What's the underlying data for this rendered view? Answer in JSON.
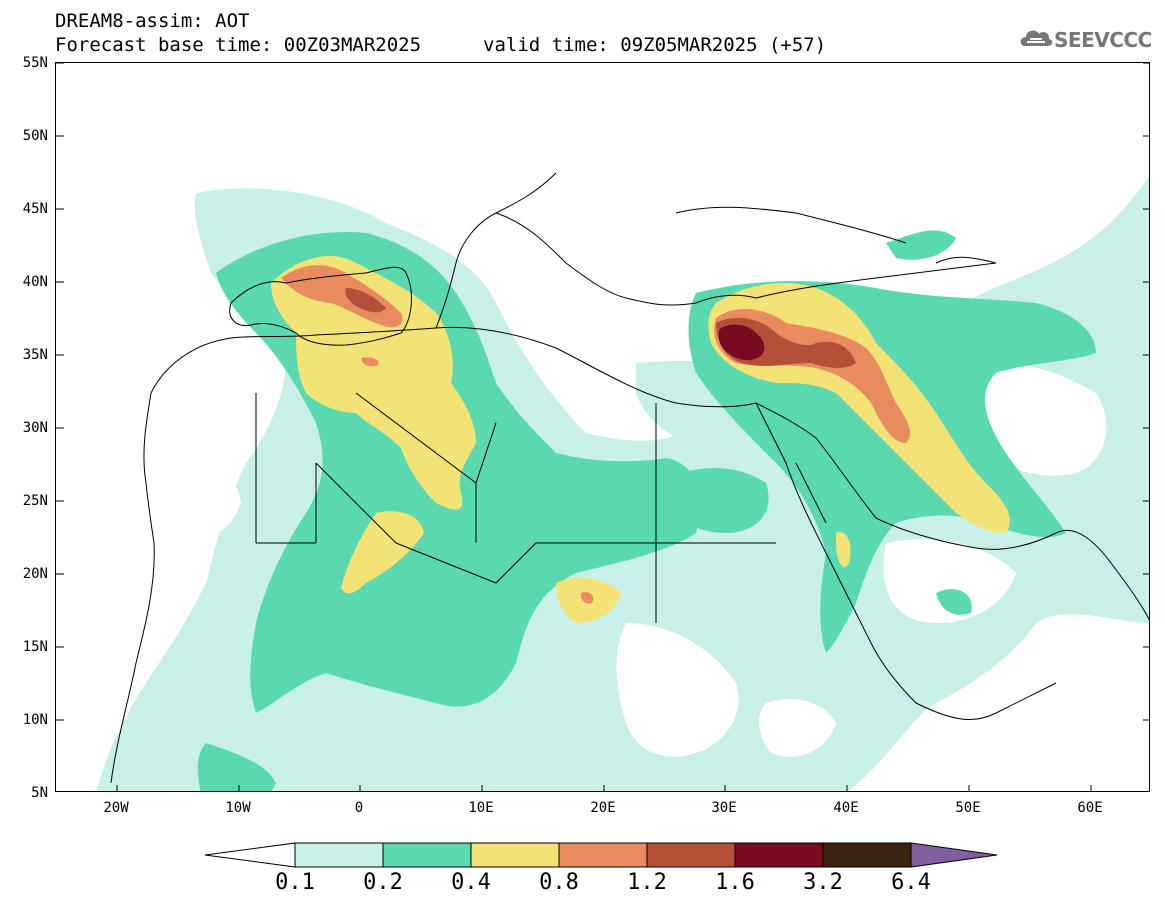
{
  "header": {
    "line1": "DREAM8-assim: AOT",
    "base_time": "Forecast base time: 00Z03MAR2025",
    "valid_time": "valid time: 09Z05MAR2025 (+57)",
    "logo_text": "SEEVCCC"
  },
  "axes": {
    "lat_labels": [
      "55N",
      "50N",
      "45N",
      "40N",
      "35N",
      "30N",
      "25N",
      "20N",
      "15N",
      "10N",
      "5N"
    ],
    "lon_labels": [
      "20W",
      "10W",
      "0",
      "10E",
      "20E",
      "30E",
      "40E",
      "50E",
      "60E"
    ]
  },
  "colorbar": {
    "labels": [
      "0.1",
      "0.2",
      "0.4",
      "0.8",
      "1.2",
      "1.6",
      "3.2",
      "6.4"
    ],
    "colors": [
      "#c8f0e8",
      "#5ad9b0",
      "#f3e276",
      "#e88c60",
      "#b4503a",
      "#7a0a22",
      "#3d2410",
      "#8060a0"
    ]
  },
  "map": {
    "variable": "AOT",
    "lon_range": [
      -25,
      65
    ],
    "lat_range": [
      5,
      55
    ]
  }
}
